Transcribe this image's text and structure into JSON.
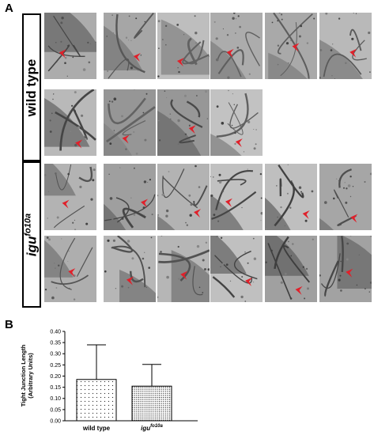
{
  "panels": {
    "a_label": "A",
    "b_label": "B"
  },
  "figure_a": {
    "groups": [
      {
        "label_main": "wild type",
        "label_sup": "",
        "italic": false,
        "rows": [
          6,
          4
        ]
      },
      {
        "label_main": "igu",
        "label_sup": "fo10a",
        "italic": true,
        "rows": [
          6,
          6
        ]
      }
    ],
    "arrow_color": "#e0202a"
  },
  "chart_data": {
    "type": "bar",
    "categories": [
      "wild type",
      "igu"
    ],
    "category_superscripts": [
      "",
      "fo10a"
    ],
    "values": [
      0.185,
      0.155
    ],
    "errors": [
      0.155,
      0.097
    ],
    "ylabel": "Tight Junction Length (Arbitrary Units)",
    "ylabel_line1": "Tight Junction Length",
    "ylabel_line2": "(Arbitrary Units)",
    "ylim": [
      0,
      0.4
    ],
    "yticks": [
      "0.00",
      "0.05",
      "0.10",
      "0.15",
      "0.20",
      "0.25",
      "0.30",
      "0.35",
      "0.40"
    ],
    "patterns": [
      "sparse-dots",
      "dense-dots"
    ],
    "grid": false
  }
}
